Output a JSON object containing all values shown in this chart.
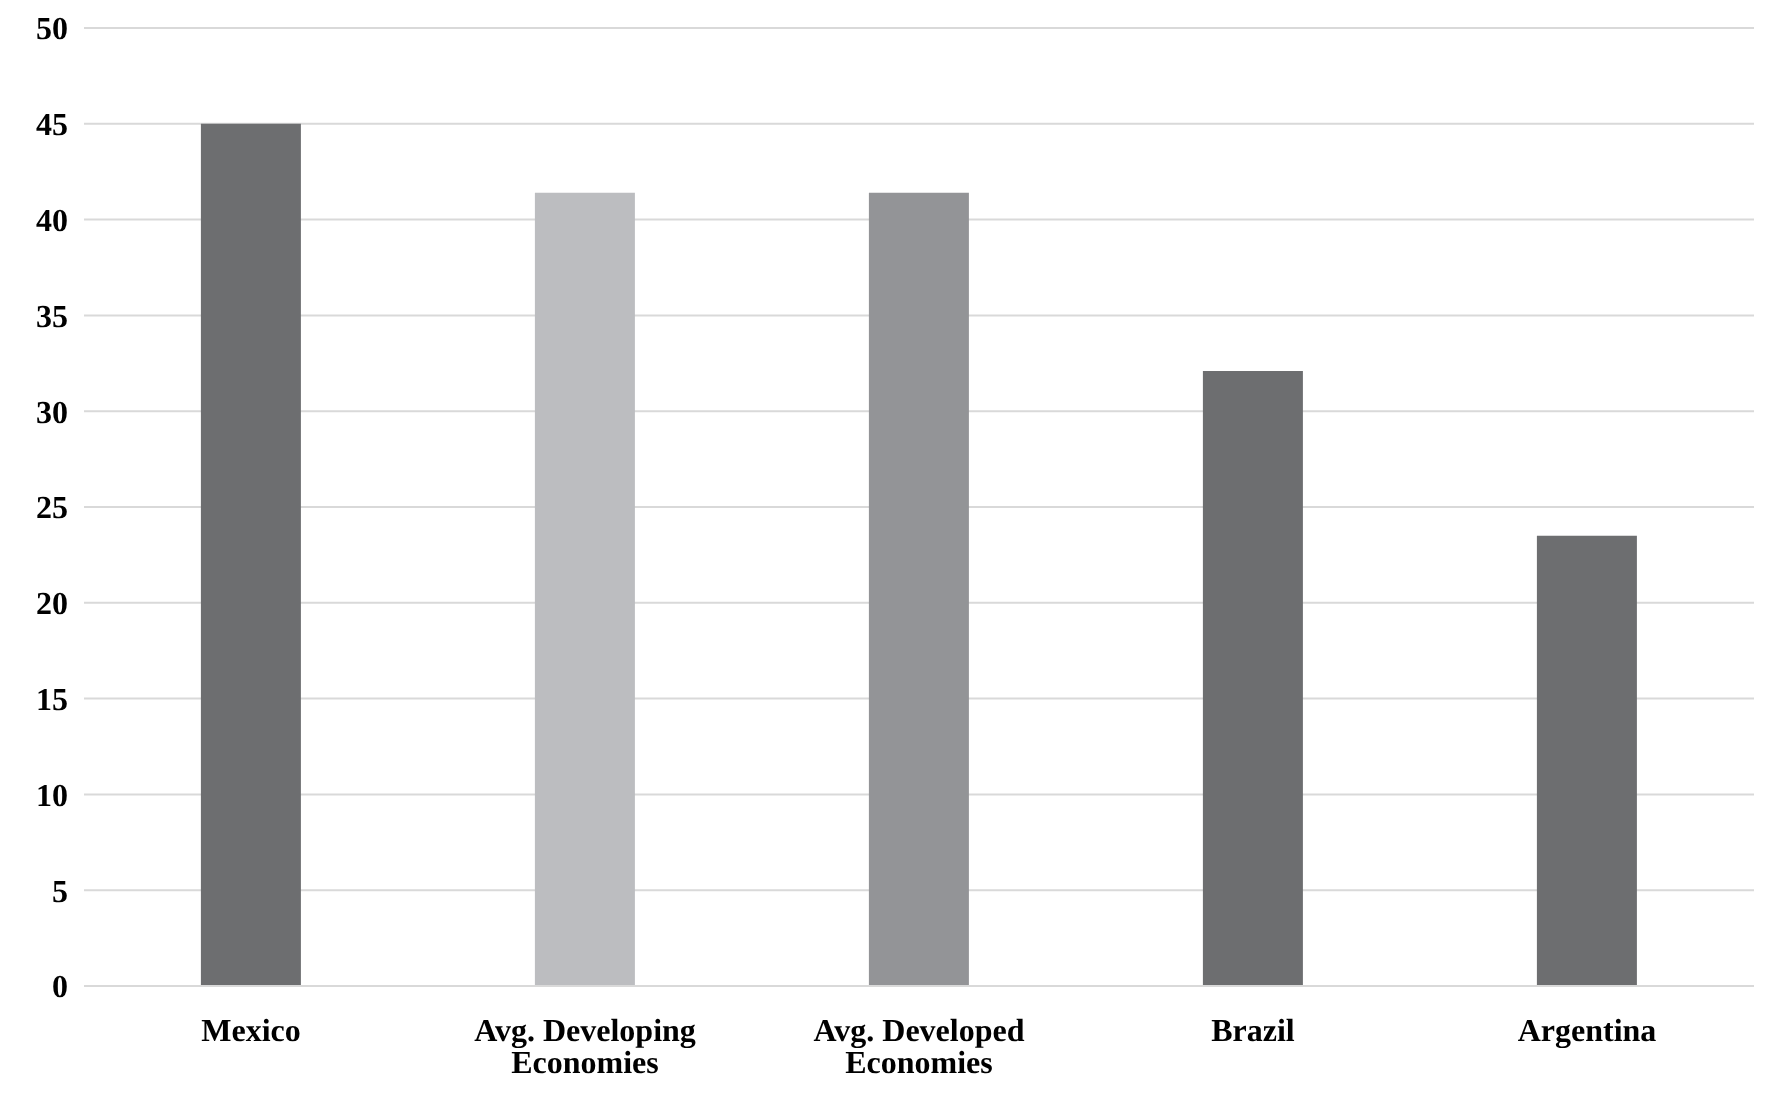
{
  "chart_data": {
    "type": "bar",
    "categories": [
      "Mexico",
      "Avg. Developing Economies",
      "Avg. Developed Economies",
      "Brazil",
      "Argentina"
    ],
    "values": [
      45,
      41.4,
      41.4,
      32.1,
      23.5
    ],
    "colors": [
      "#6d6e70",
      "#bcbdc0",
      "#939497",
      "#6d6e70",
      "#6d6e70"
    ],
    "ylim": [
      0,
      50
    ],
    "yticks": [
      0,
      5,
      10,
      15,
      20,
      25,
      30,
      35,
      40,
      45,
      50
    ],
    "grid": "y"
  }
}
